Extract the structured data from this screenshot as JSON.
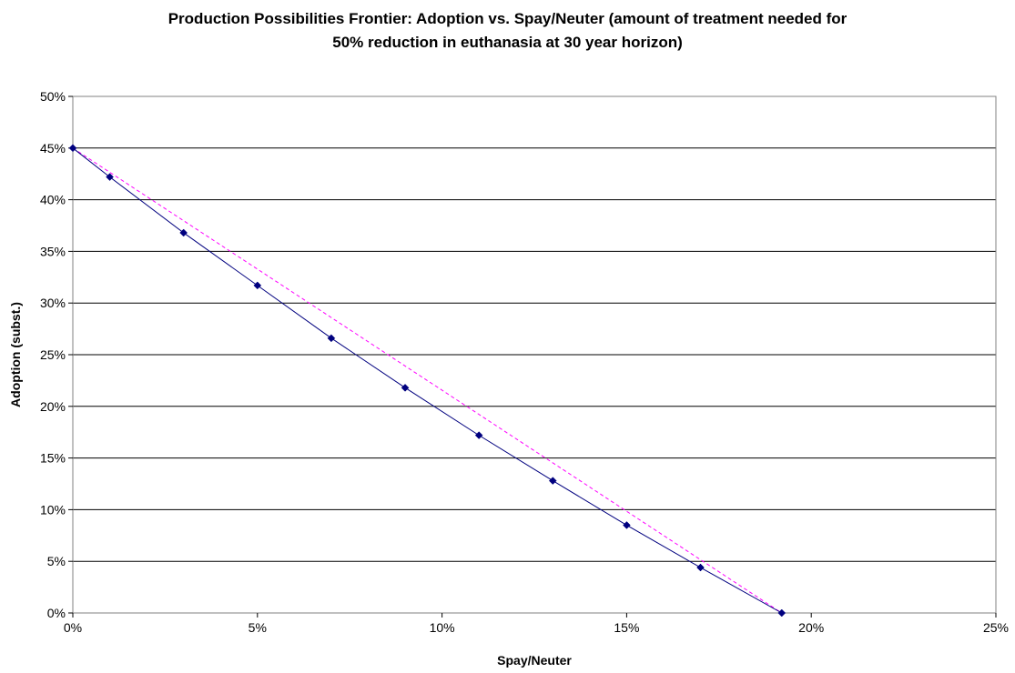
{
  "chart_data": {
    "type": "line",
    "title_lines": [
      "Production Possibilities Frontier:  Adoption vs. Spay/Neuter (amount of treatment needed for",
      "50% reduction in euthanasia at 30 year horizon)"
    ],
    "xlabel": "Spay/Neuter",
    "ylabel": "Adoption (subst.)",
    "xlim": [
      0,
      25
    ],
    "ylim": [
      0,
      50
    ],
    "x_ticks": [
      "0%",
      "5%",
      "10%",
      "15%",
      "20%",
      "25%"
    ],
    "y_ticks": [
      "0%",
      "5%",
      "10%",
      "15%",
      "20%",
      "25%",
      "30%",
      "35%",
      "40%",
      "45%",
      "50%"
    ],
    "grid": "horizontal",
    "series": [
      {
        "color": "#00007F",
        "style": "solid-with-diamond-markers",
        "points": [
          {
            "x": 0,
            "y": 45.0
          },
          {
            "x": 1,
            "y": 42.2
          },
          {
            "x": 3,
            "y": 36.8
          },
          {
            "x": 5,
            "y": 31.7
          },
          {
            "x": 7,
            "y": 26.6
          },
          {
            "x": 9,
            "y": 21.8
          },
          {
            "x": 11,
            "y": 17.2
          },
          {
            "x": 13,
            "y": 12.8
          },
          {
            "x": 15,
            "y": 8.5
          },
          {
            "x": 17,
            "y": 4.4
          },
          {
            "x": 19.2,
            "y": 0.0
          }
        ]
      },
      {
        "color": "#FF00FF",
        "style": "dashed",
        "points": [
          {
            "x": 0,
            "y": 45.0
          },
          {
            "x": 19.2,
            "y": 0.0
          }
        ]
      }
    ]
  }
}
